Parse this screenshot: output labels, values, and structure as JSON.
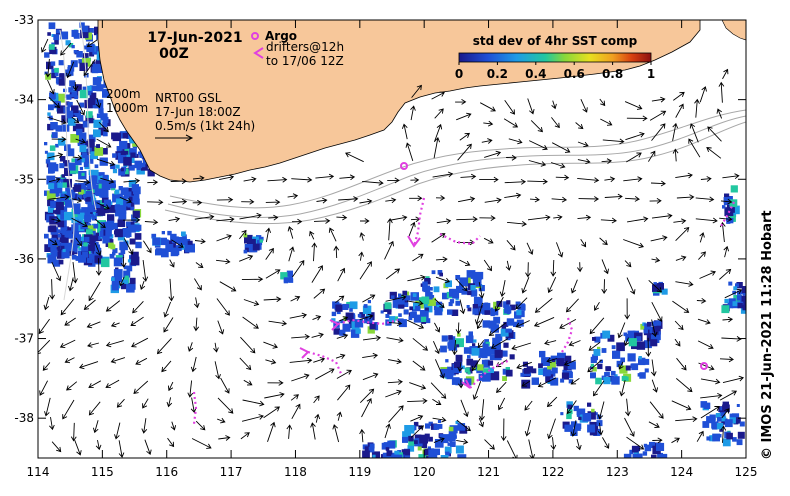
{
  "header": {
    "date": "17-Jun-2021",
    "time": "00Z"
  },
  "legend": {
    "argo_label": "Argo",
    "drifters_label": "drifters@12h",
    "drifters_range": "to 17/06 12Z"
  },
  "contours": {
    "label_200": "200m",
    "label_1000": "1000m"
  },
  "currents": {
    "source": "NRT00 GSL",
    "time": "17-Jun 18:00Z",
    "scale": "0.5m/s (1kt 24h)"
  },
  "colorbar": {
    "title": "std dev of 4hr SST comp",
    "ticks": [
      "0",
      "0.2",
      "0.4",
      "0.6",
      "0.8",
      "1"
    ],
    "colors": [
      "#1a1a8c",
      "#1f4fd6",
      "#1e9be6",
      "#22c7a0",
      "#88d83a",
      "#e8e020",
      "#f0a020",
      "#d84010",
      "#8c1010"
    ]
  },
  "axes": {
    "x_ticks": [
      "114",
      "115",
      "116",
      "117",
      "118",
      "119",
      "120",
      "121",
      "122",
      "123",
      "124",
      "125"
    ],
    "y_ticks": [
      "-33",
      "-34",
      "-35",
      "-36",
      "-37",
      "-38"
    ],
    "lon_range": [
      114,
      125
    ],
    "lat_range": [
      -38.5,
      -33
    ]
  },
  "credit": "© IMOS 21-Jun-2021 11:28 Hobart",
  "colors": {
    "land": "#f7c79a",
    "argo": "#e040e0",
    "drifter": "#e040e0"
  }
}
